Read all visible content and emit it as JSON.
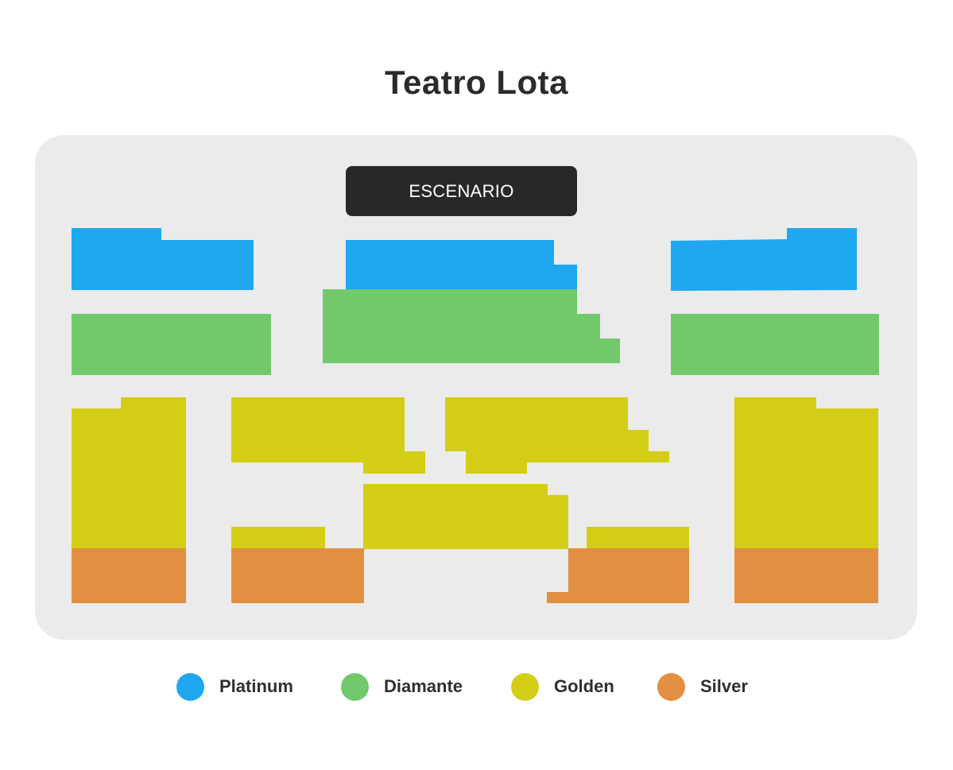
{
  "title": "Teatro Lota",
  "stage_label": "ESCENARIO",
  "categories": [
    {
      "key": "platinum",
      "label": "Platinum",
      "color": "#1fa7ef"
    },
    {
      "key": "diamante",
      "label": "Diamante",
      "color": "#71c96b"
    },
    {
      "key": "golden",
      "label": "Golden",
      "color": "#d3cd16"
    },
    {
      "key": "silver",
      "label": "Silver",
      "color": "#e28f41"
    }
  ]
}
